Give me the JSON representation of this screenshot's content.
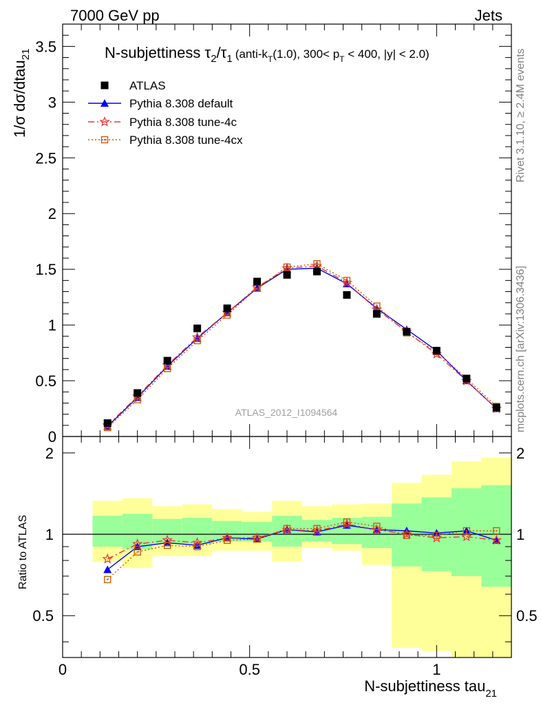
{
  "header": {
    "left": "7000 GeV pp",
    "right": "Jets",
    "side_top": "Rivet 3.1.10, ≥ 2.4M events",
    "side_bottom": "mcplots.cern.ch [arXiv:1306.3436]",
    "watermark": "ATLAS_2012_I1094564"
  },
  "chart_data": {
    "type": "line",
    "title_main": "N-subjettiness τ",
    "title_sub2": "2",
    "title_slash": "/τ",
    "title_sub1": "1",
    "title_detail": "(anti-k",
    "title_detail_T": "T",
    "title_detail_rest": "(1.0), 300< p",
    "title_detail_T2": "T",
    "title_detail_end": " < 400, |y| < 2.0)",
    "ylabel_main": "1/σ dσ/dtau",
    "ylabel_sub": "21",
    "ylabel_ratio": "Ratio to ATLAS",
    "xlabel_main": "N-subjettiness tau",
    "xlabel_sub": "21",
    "xlim": [
      0,
      1.2
    ],
    "ylim_main": [
      0,
      3.7
    ],
    "ylim_ratio": [
      0.35,
      2.3
    ],
    "x_ticks": [
      "0",
      "0.5",
      "1"
    ],
    "y_ticks_main": [
      "0",
      "0.5",
      "1",
      "1.5",
      "2",
      "2.5",
      "3",
      "3.5"
    ],
    "y_ticks_ratio": [
      "0.5",
      "1",
      "2"
    ],
    "x": [
      0.12,
      0.2,
      0.28,
      0.36,
      0.44,
      0.52,
      0.6,
      0.68,
      0.76,
      0.84,
      0.92,
      1.0,
      1.08,
      1.16
    ],
    "bin_edges": [
      0.08,
      0.16,
      0.24,
      0.32,
      0.4,
      0.48,
      0.56,
      0.64,
      0.72,
      0.8,
      0.88,
      0.96,
      1.04,
      1.12,
      1.2
    ],
    "legend": [
      "ATLAS",
      "Pythia 8.308 default",
      "Pythia 8.308 tune-4c",
      "Pythia 8.308 tune-4cx"
    ],
    "series": [
      {
        "name": "ATLAS",
        "color": "#000000",
        "values": [
          0.12,
          0.39,
          0.68,
          0.97,
          1.15,
          1.39,
          1.45,
          1.48,
          1.27,
          1.1,
          0.94,
          0.77,
          0.52,
          0.26
        ]
      },
      {
        "name": "Pythia 8.308 default",
        "color": "#0000ff",
        "values": [
          0.09,
          0.35,
          0.63,
          0.88,
          1.11,
          1.33,
          1.5,
          1.51,
          1.37,
          1.15,
          0.96,
          0.77,
          0.5,
          0.25
        ]
      },
      {
        "name": "Pythia 8.308 tune-4c",
        "color": "#ee3333",
        "values": [
          0.1,
          0.36,
          0.64,
          0.89,
          1.11,
          1.34,
          1.51,
          1.53,
          1.38,
          1.14,
          0.94,
          0.74,
          0.5,
          0.25
        ]
      },
      {
        "name": "Pythia 8.308 tune-4cx",
        "color": "#cc5500",
        "values": [
          0.08,
          0.33,
          0.61,
          0.86,
          1.09,
          1.33,
          1.52,
          1.55,
          1.4,
          1.17,
          0.93,
          0.76,
          0.52,
          0.27
        ]
      }
    ],
    "ratio_series": [
      {
        "name": "Pythia 8.308 default",
        "values": [
          0.74,
          0.9,
          0.93,
          0.91,
          0.97,
          0.96,
          1.04,
          1.02,
          1.08,
          1.04,
          1.03,
          1.01,
          1.03,
          0.95
        ]
      },
      {
        "name": "Pythia 8.308 tune-4c",
        "values": [
          0.81,
          0.92,
          0.95,
          0.93,
          0.97,
          0.97,
          1.04,
          1.03,
          1.09,
          1.04,
          1.0,
          0.97,
          0.98,
          0.95
        ]
      },
      {
        "name": "Pythia 8.308 tune-4cx",
        "values": [
          0.68,
          0.86,
          0.91,
          0.9,
          0.95,
          0.96,
          1.05,
          1.05,
          1.11,
          1.07,
          0.99,
          0.99,
          1.03,
          1.03
        ]
      }
    ],
    "band_outer": {
      "lo": [
        0.79,
        0.75,
        0.83,
        0.83,
        0.87,
        0.87,
        0.79,
        0.89,
        0.87,
        0.77,
        0.38,
        0.37,
        0.35,
        0.35
      ],
      "hi": [
        1.33,
        1.36,
        1.27,
        1.29,
        1.24,
        1.21,
        1.33,
        1.27,
        1.29,
        1.3,
        1.55,
        1.66,
        1.86,
        1.92
      ]
    },
    "band_inner": {
      "lo": [
        0.9,
        0.88,
        0.92,
        0.92,
        0.94,
        0.94,
        0.9,
        0.94,
        0.92,
        0.89,
        0.76,
        0.73,
        0.7,
        0.64
      ],
      "hi": [
        1.17,
        1.19,
        1.14,
        1.15,
        1.12,
        1.11,
        1.17,
        1.13,
        1.15,
        1.16,
        1.3,
        1.37,
        1.48,
        1.52
      ]
    },
    "band_colors": {
      "outer": "#ffff99",
      "inner": "#99ff99"
    },
    "grid": false
  }
}
